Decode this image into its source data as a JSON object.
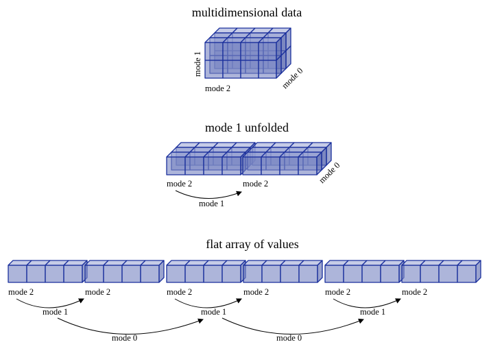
{
  "titles": {
    "cube": "multidimensional data",
    "unfolded": "mode 1 unfolded",
    "flat": "flat array of values"
  },
  "labels": {
    "mode0": "mode 0",
    "mode1": "mode 1",
    "mode2": "mode 2"
  },
  "colors": {
    "cell_fill": "#7a87c4",
    "cell_top": "#a3acd8",
    "cell_side": "#5e6cb0",
    "edge": "#1a2f9c",
    "arrow": "#000000"
  },
  "diagram": {
    "cube_dims": {
      "mode0": 3,
      "mode1": 2,
      "mode2": 4
    },
    "unfolded_blocks": 2,
    "flat_blocks": 6
  }
}
